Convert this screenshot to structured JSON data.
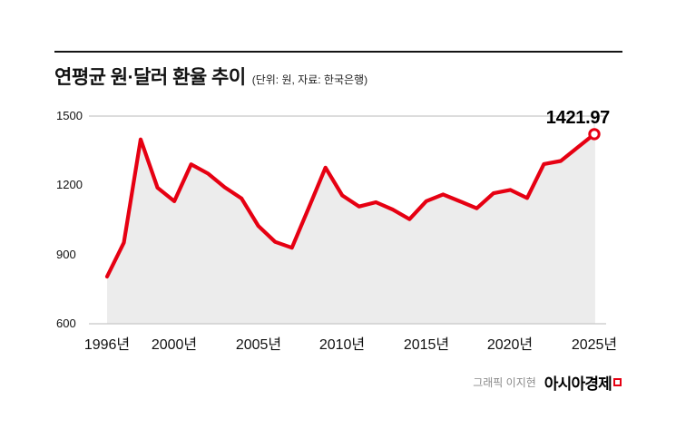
{
  "header": {
    "title": "연평균 원·달러 환율 추이",
    "subtitle": "(단위: 원, 자료: 한국은행)"
  },
  "chart": {
    "y_tick_labels": [
      "1500",
      "1200",
      "900",
      "600"
    ],
    "x_tick_labels": [
      "1996년",
      "2000년",
      "2005년",
      "2010년",
      "2015년",
      "2020년",
      "2025년"
    ],
    "annotation": "1421.97"
  },
  "footer": {
    "credit": "그래픽 이지현",
    "brand": "아시아경제"
  },
  "colors": {
    "line": "#e60012",
    "area": "#ececec",
    "grid": "#c8c8c8",
    "grid_light": "#dcdcdc",
    "accent": "#e60012"
  },
  "chart_data": {
    "type": "area",
    "title": "연평균 원·달러 환율 추이",
    "unit": "원",
    "source": "한국은행",
    "x": [
      1996,
      1997,
      1998,
      1999,
      2000,
      2001,
      2002,
      2003,
      2004,
      2005,
      2006,
      2007,
      2008,
      2009,
      2010,
      2011,
      2012,
      2013,
      2014,
      2015,
      2016,
      2017,
      2018,
      2019,
      2020,
      2021,
      2022,
      2023,
      2024,
      2025
    ],
    "values": [
      804.45,
      951.29,
      1398.88,
      1189.49,
      1130.96,
      1290.99,
      1251.09,
      1191.61,
      1143.67,
      1024.12,
      954.79,
      929.26,
      1102.05,
      1276.93,
      1156.06,
      1108.32,
      1126.47,
      1094.85,
      1053.12,
      1131.49,
      1160.41,
      1130.42,
      1100.16,
      1165.65,
      1180.05,
      1144.61,
      1291.95,
      1305.41,
      1363.98,
      1421.97
    ],
    "ylim": [
      600,
      1500
    ],
    "y_ticks": [
      600,
      900,
      1200,
      1500
    ],
    "x_tick_years": [
      1996,
      2000,
      2005,
      2010,
      2015,
      2020,
      2025
    ],
    "annotation": {
      "x": 2025,
      "value": 1421.97,
      "label": "1421.97"
    },
    "grid": "horizontal-top-bottom",
    "legend": false
  }
}
